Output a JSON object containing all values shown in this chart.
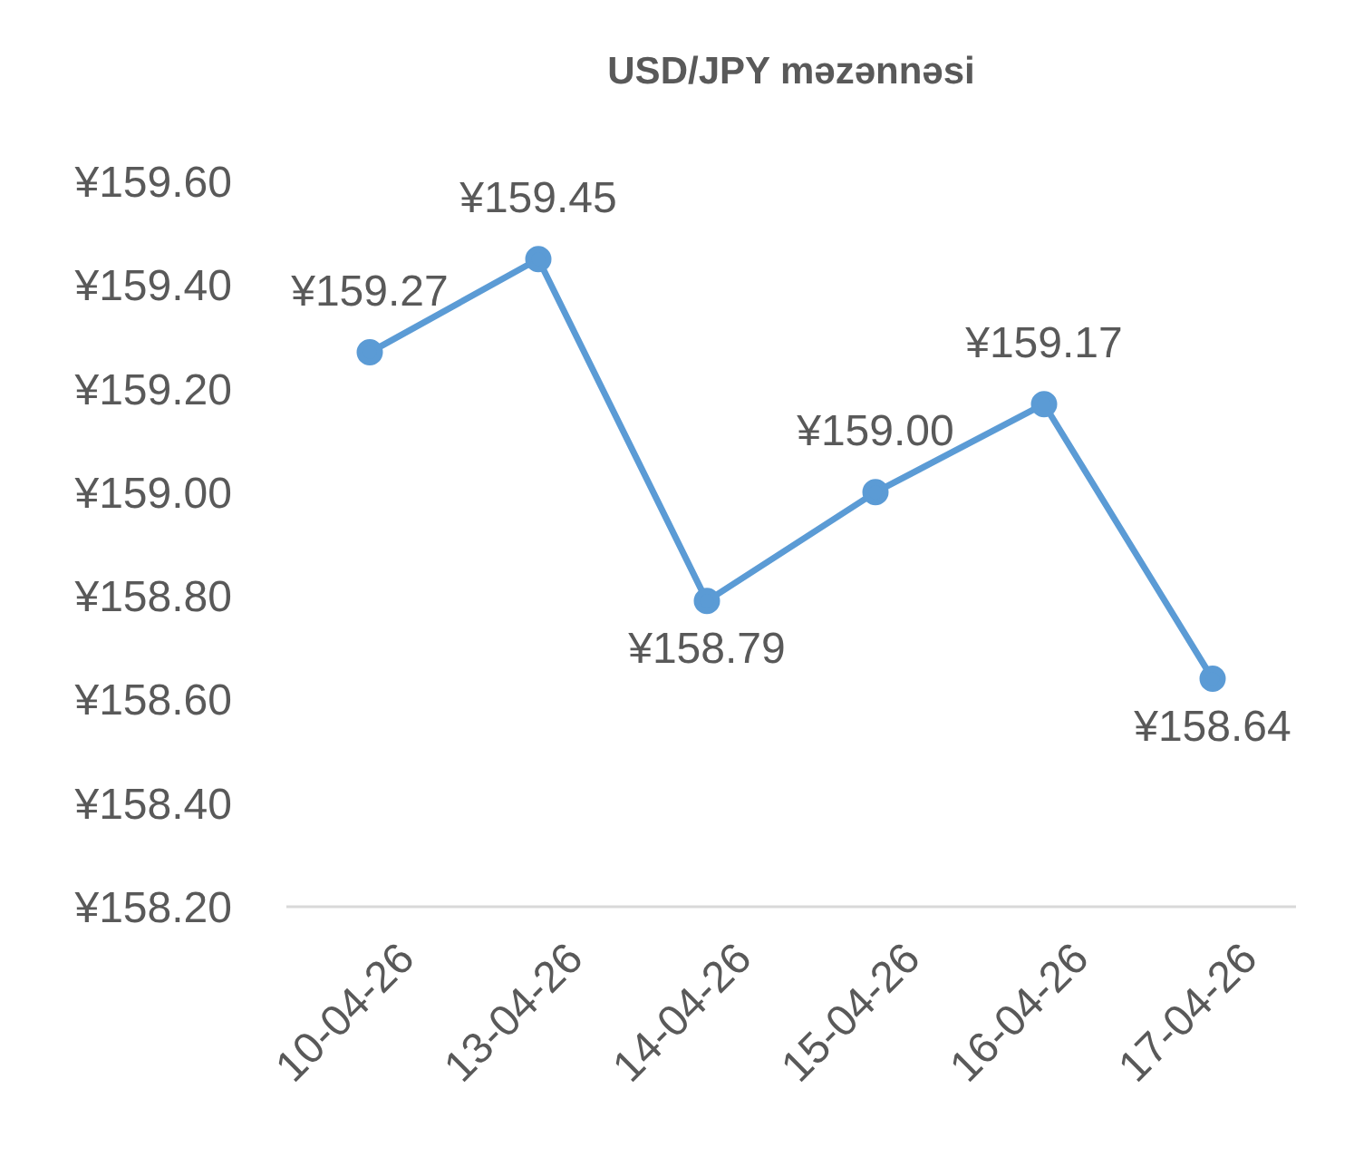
{
  "chart_data": {
    "type": "line",
    "title": "USD/JPY məzənnəsi",
    "categories": [
      "10-04-26",
      "13-04-26",
      "14-04-26",
      "15-04-26",
      "16-04-26",
      "17-04-26"
    ],
    "series": [
      {
        "color": "#5b9bd5",
        "values": [
          159.27,
          159.45,
          158.79,
          159.0,
          159.17,
          158.64
        ],
        "value_labels": [
          "¥159.27",
          "¥159.45",
          "¥158.79",
          "¥159.00",
          "¥159.17",
          "¥158.64"
        ]
      }
    ],
    "ylim": [
      158.2,
      159.6
    ],
    "yticks": [
      {
        "value": 158.2,
        "label": "¥158.20"
      },
      {
        "value": 158.4,
        "label": "¥158.40"
      },
      {
        "value": 158.6,
        "label": "¥158.60"
      },
      {
        "value": 158.8,
        "label": "¥158.80"
      },
      {
        "value": 159.0,
        "label": "¥159.00"
      },
      {
        "value": 159.2,
        "label": "¥159.20"
      },
      {
        "value": 159.4,
        "label": "¥159.40"
      },
      {
        "value": 159.6,
        "label": "¥159.60"
      }
    ],
    "grid": false,
    "legend": false,
    "marker": "circle",
    "line_style": "solid"
  }
}
